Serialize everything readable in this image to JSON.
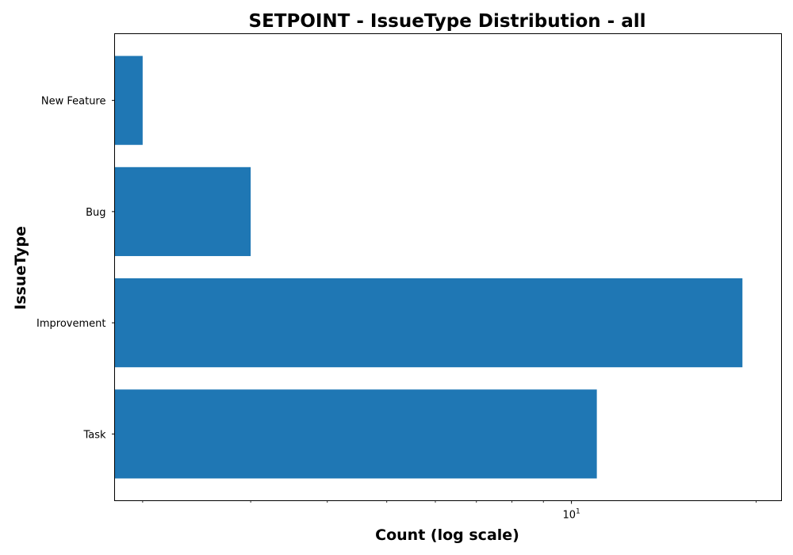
{
  "chart_data": {
    "type": "bar",
    "orientation": "horizontal",
    "title": "SETPOINT - IssueType Distribution - all",
    "xlabel": "Count (log scale)",
    "ylabel": "IssueType",
    "x_scale": "log",
    "xlim": [
      1.8,
      22
    ],
    "x_major_tick": {
      "value": 10,
      "label_base": "10",
      "label_exp": "1"
    },
    "x_minor_ticks": [
      2,
      3,
      4,
      5,
      6,
      7,
      8,
      9,
      20
    ],
    "categories": [
      "Task",
      "Improvement",
      "Bug",
      "New Feature"
    ],
    "values": [
      11,
      19,
      3,
      2
    ],
    "bar_color": "#1f77b4",
    "grid": false,
    "legend": "none"
  }
}
